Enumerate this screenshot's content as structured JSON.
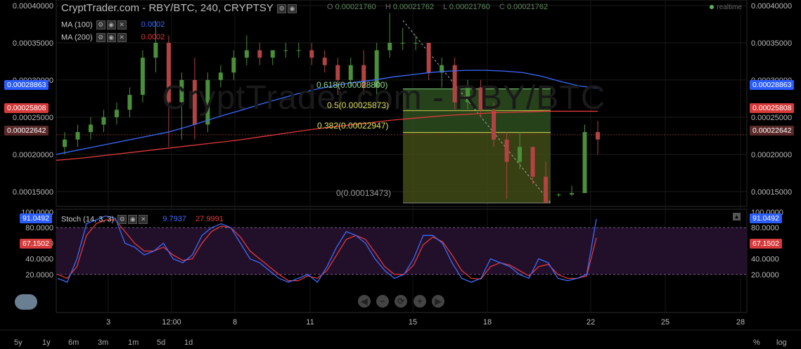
{
  "header": {
    "title": "CryptTrader.com - RBY/BTC, 240, CRYPTSY",
    "open_label": "O",
    "open": "0.00021760",
    "high_label": "H",
    "high": "0.00021762",
    "low_label": "L",
    "low": "0.00021760",
    "close_label": "C",
    "close": "0.00021762",
    "realtime": "realtime"
  },
  "indicators": {
    "ma100": {
      "label": "MA (100)",
      "value": "0.0002",
      "color": "#3b6bff"
    },
    "ma200": {
      "label": "MA (200)",
      "value": "0.0002",
      "color": "#e2393a"
    },
    "stoch": {
      "label": "Stoch (14, 3, 3)",
      "k": "9.7937",
      "d": "27.9991",
      "k_color": "#3b6bff",
      "d_color": "#e2393a"
    }
  },
  "watermark": "CryptTrader.com - RBY/BTC",
  "price_axis": {
    "left_ticks": [
      "0.00040000",
      "0.00035000",
      "0.00030000",
      "0.00025000",
      "0.00020000",
      "0.00015000"
    ],
    "right_ticks": [
      "0.00040000",
      "0.00035000",
      "0.00030000",
      "0.00025000",
      "0.00020000",
      "0.00015000"
    ],
    "badges": [
      {
        "text": "0.00028863",
        "color": "#2a5cff"
      },
      {
        "text": "0.00025808",
        "color": "#d63a3a"
      },
      {
        "text": "0.00022642",
        "color": "#5a2a2a"
      }
    ]
  },
  "stoch_axis": {
    "ticks": [
      "100.0000",
      "80.0000",
      "60.0000",
      "40.0000",
      "20.0000"
    ],
    "badges": [
      {
        "text": "91.0492",
        "color": "#2a5cff"
      },
      {
        "text": "67.1502",
        "color": "#d63a3a"
      }
    ]
  },
  "fib": {
    "levels": [
      {
        "text": "0.618(0.00028800)",
        "color": "#8fd48f"
      },
      {
        "text": "0.5(0.00025873)",
        "color": "#d8d85a"
      },
      {
        "text": "0.382(0.00022947)",
        "color": "#e0e060"
      },
      {
        "text": "0(0.00013473)",
        "color": "#999999"
      }
    ]
  },
  "time_axis": [
    "3",
    "12:00",
    "8",
    "11",
    "15",
    "18",
    "22",
    "25",
    "28"
  ],
  "timeframes": [
    "5y",
    "1y",
    "6m",
    "3m",
    "1m",
    "5d",
    "1d"
  ],
  "bottom_right": {
    "percent": "%",
    "log": "log"
  },
  "nav_buttons": [
    "◀",
    "−",
    "⟳",
    "+",
    "▶"
  ],
  "chart_data": {
    "type": "candlestick",
    "ylim": [
      0.00013,
      0.0004
    ],
    "candles": [
      [
        0.00021,
        0.00023,
        0.0002,
        0.00022
      ],
      [
        0.00022,
        0.00024,
        0.00021,
        0.00023
      ],
      [
        0.00023,
        0.00025,
        0.00022,
        0.00024
      ],
      [
        0.00024,
        0.00026,
        0.00023,
        0.00025
      ],
      [
        0.00025,
        0.00027,
        0.00024,
        0.00026
      ],
      [
        0.00026,
        0.00029,
        0.00025,
        0.00028
      ],
      [
        0.00028,
        0.00034,
        0.00027,
        0.00033
      ],
      [
        0.00033,
        0.00038,
        0.00031,
        0.00035
      ],
      [
        0.00035,
        0.00036,
        0.00021,
        0.00027
      ],
      [
        0.00027,
        0.00031,
        0.00022,
        0.0003
      ],
      [
        0.0003,
        0.00033,
        0.00022,
        0.00024
      ],
      [
        0.00024,
        0.00031,
        0.00023,
        0.0003
      ],
      [
        0.0003,
        0.00032,
        0.00029,
        0.00031
      ],
      [
        0.00031,
        0.00034,
        0.0003,
        0.00033
      ],
      [
        0.00033,
        0.00036,
        0.00032,
        0.00034
      ],
      [
        0.00034,
        0.00035,
        0.00032,
        0.00033
      ],
      [
        0.00033,
        0.00034,
        0.00032,
        0.00034
      ],
      [
        0.00034,
        0.00035,
        0.00033,
        0.00034
      ],
      [
        0.00034,
        0.00035,
        0.00033,
        0.00034
      ],
      [
        0.00034,
        0.00035,
        0.00032,
        0.00033
      ],
      [
        0.00033,
        0.00034,
        0.00031,
        0.00032
      ],
      [
        0.00032,
        0.00033,
        0.00028,
        0.0003
      ],
      [
        0.0003,
        0.00033,
        0.00029,
        0.00032
      ],
      [
        0.00032,
        0.00034,
        0.00028,
        0.00029
      ],
      [
        0.00029,
        0.00035,
        0.00028,
        0.00034
      ],
      [
        0.00034,
        0.00039,
        0.00033,
        0.00035
      ],
      [
        0.00035,
        0.00037,
        0.00034,
        0.00035
      ],
      [
        0.00035,
        0.00036,
        0.00034,
        0.00035
      ],
      [
        0.00035,
        0.00035,
        0.0003,
        0.00031
      ],
      [
        0.00031,
        0.00033,
        0.00029,
        0.00032
      ],
      [
        0.00032,
        0.00033,
        0.00026,
        0.00027
      ],
      [
        0.00027,
        0.0003,
        0.00026,
        0.00029
      ],
      [
        0.00029,
        0.0003,
        0.00025,
        0.00026
      ],
      [
        0.00026,
        0.00027,
        0.00021,
        0.00022
      ],
      [
        0.00022,
        0.00023,
        0.00014,
        0.00019
      ],
      [
        0.00019,
        0.00023,
        0.00018,
        0.00021
      ],
      [
        0.00021,
        0.00021,
        0.00016,
        0.00017
      ],
      [
        0.00017,
        0.00019,
        0.000135,
        0.000135
      ],
      [
        0.000145,
        0.000148,
        0.000143,
        0.000146
      ],
      [
        0.000146,
        0.000158,
        0.000144,
        0.000148
      ],
      [
        0.000148,
        0.00024,
        0.000148,
        0.00023
      ],
      [
        0.00023,
        0.000245,
        0.0002,
        0.00022
      ]
    ],
    "ma100": [
      0.0002,
      0.000205,
      0.00021,
      0.000215,
      0.00022,
      0.000225,
      0.00023,
      0.000237,
      0.000245,
      0.000253,
      0.00026,
      0.000268,
      0.000275,
      0.000282,
      0.000288,
      0.000293,
      0.000297,
      0.0003,
      0.000304,
      0.000307,
      0.00031,
      0.000312,
      0.000313,
      0.000313,
      0.000312,
      0.00031,
      0.000305,
      0.000298,
      0.000292,
      0.000289
    ],
    "ma200": [
      0.000192,
      0.000195,
      0.000199,
      0.000203,
      0.000207,
      0.000211,
      0.000215,
      0.000219,
      0.000224,
      0.000229,
      0.000234,
      0.000238,
      0.000242,
      0.000246,
      0.000249,
      0.000252,
      0.000254,
      0.000256,
      0.000257,
      0.000258,
      0.000258,
      0.000258
    ],
    "stoch_k": [
      15,
      10,
      40,
      85,
      90,
      95,
      92,
      60,
      55,
      45,
      50,
      60,
      40,
      35,
      45,
      70,
      80,
      85,
      80,
      60,
      40,
      35,
      25,
      15,
      10,
      15,
      20,
      10,
      30,
      55,
      75,
      70,
      60,
      40,
      25,
      15,
      20,
      40,
      70,
      70,
      60,
      35,
      15,
      10,
      15,
      40,
      35,
      30,
      20,
      15,
      40,
      35,
      15,
      12,
      15,
      20,
      91
    ],
    "stoch_d": [
      20,
      15,
      30,
      70,
      85,
      90,
      90,
      75,
      60,
      50,
      50,
      55,
      45,
      38,
      40,
      60,
      75,
      82,
      80,
      68,
      50,
      40,
      30,
      20,
      12,
      12,
      18,
      15,
      25,
      45,
      65,
      70,
      65,
      48,
      30,
      20,
      20,
      32,
      58,
      68,
      62,
      45,
      25,
      15,
      14,
      30,
      35,
      32,
      25,
      18,
      30,
      33,
      20,
      15,
      15,
      18,
      67
    ]
  }
}
